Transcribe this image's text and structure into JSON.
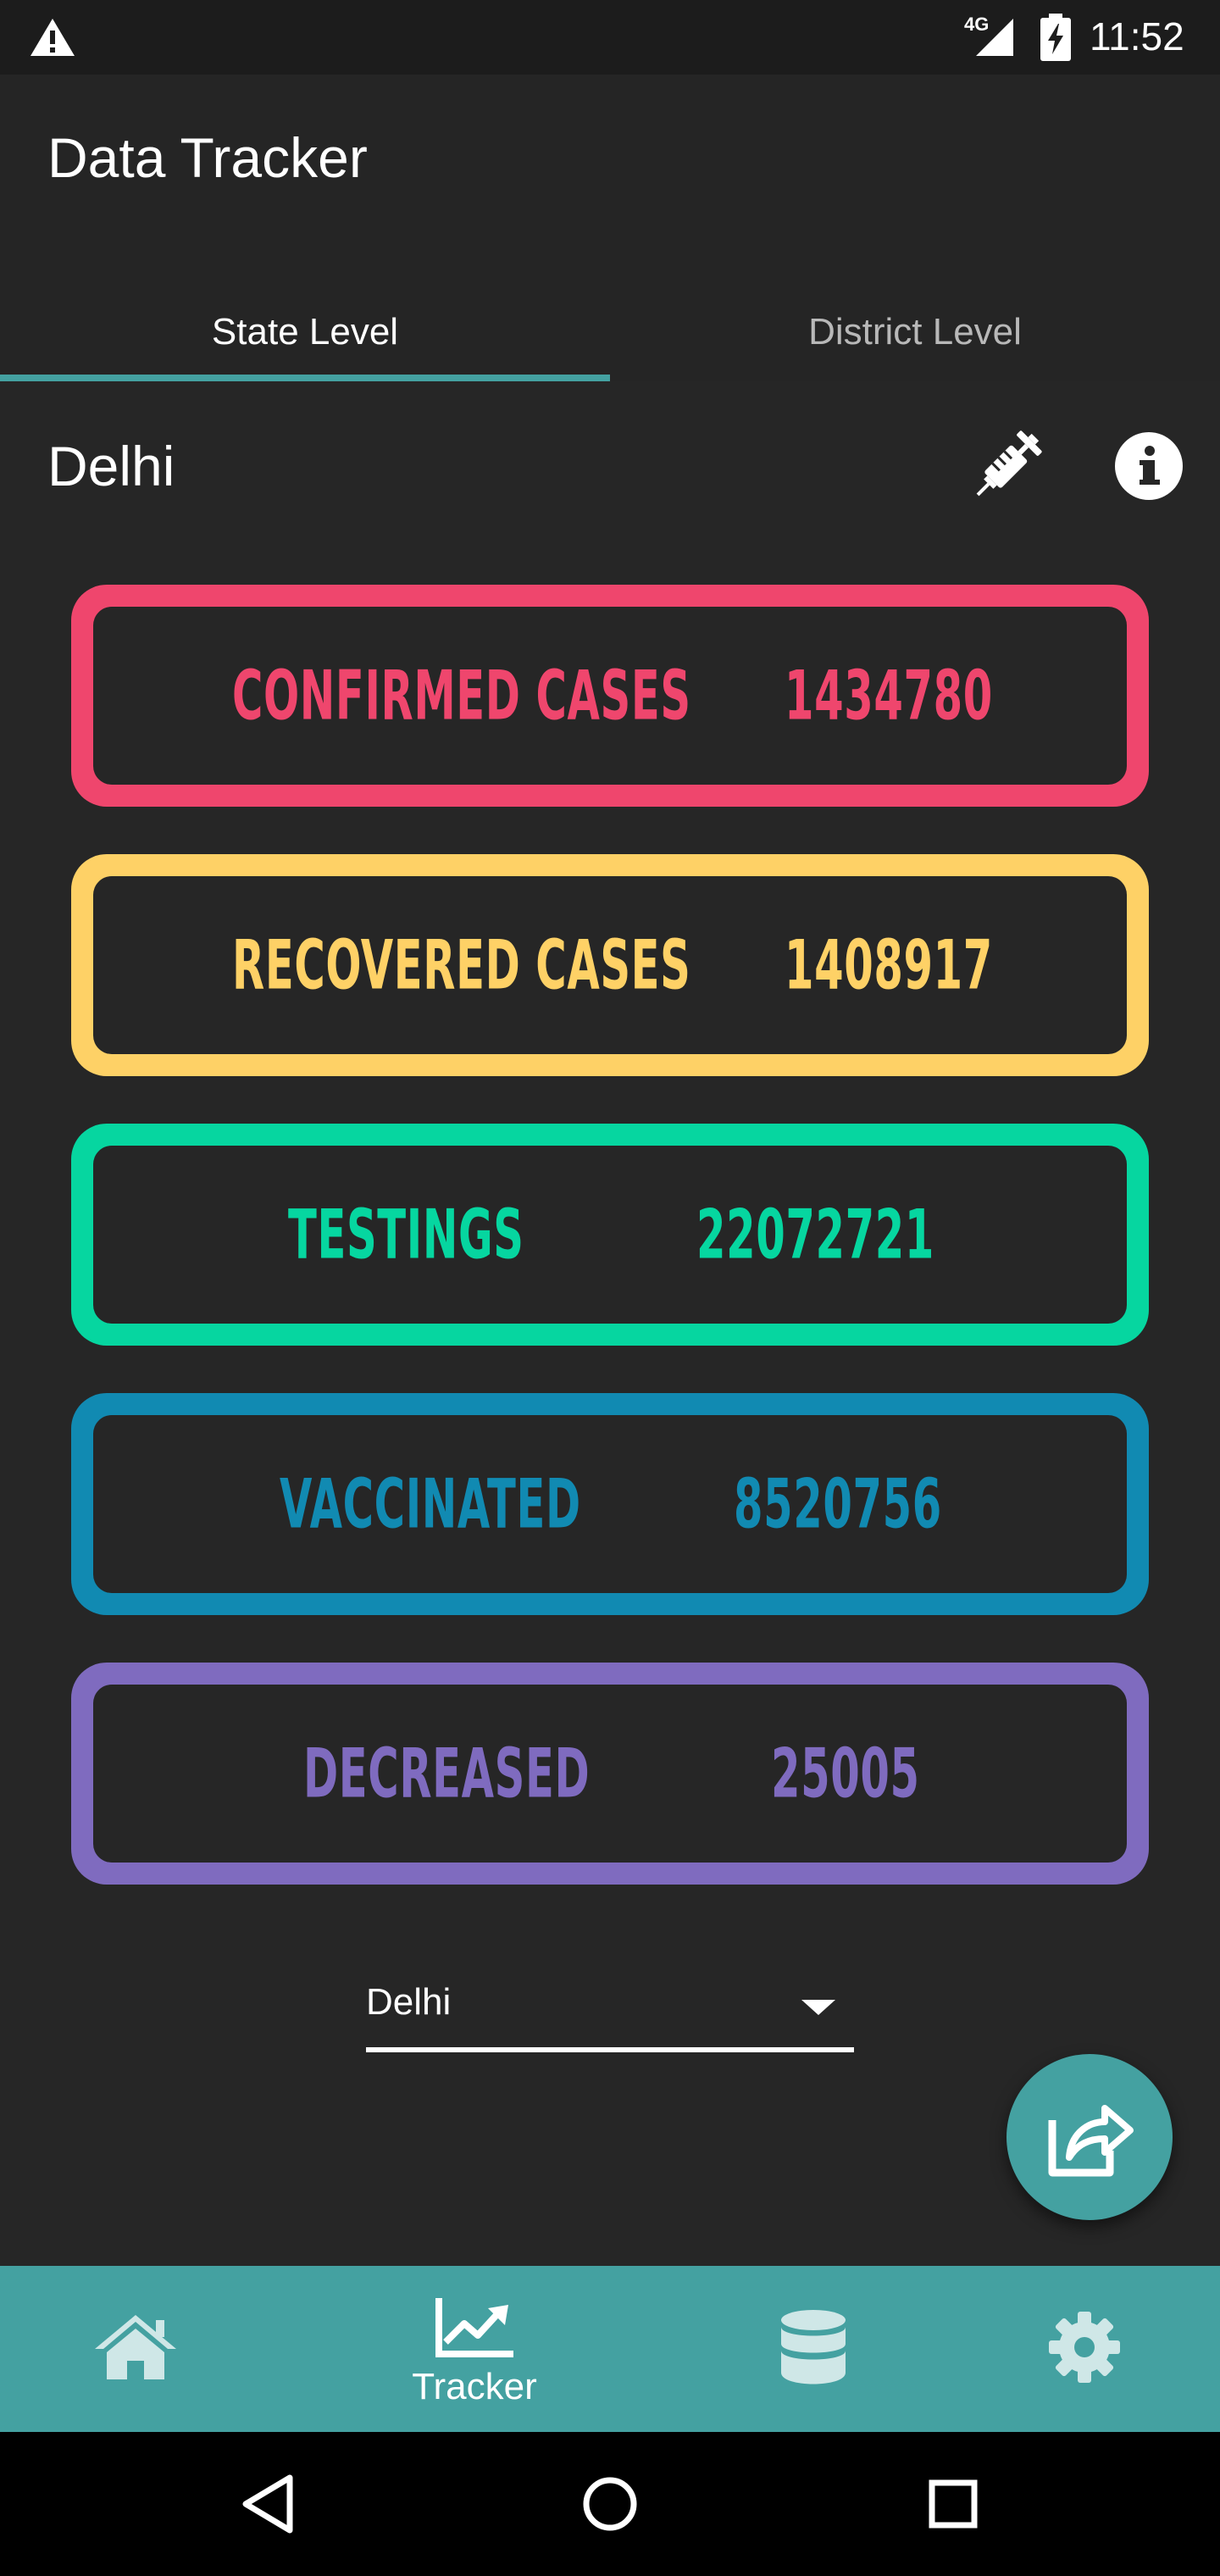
{
  "status_bar": {
    "network": "4G",
    "time": "11:52",
    "icons": [
      "warning-icon",
      "signal-icon",
      "battery-charging-icon"
    ]
  },
  "app": {
    "title": "Data Tracker"
  },
  "tabs": [
    {
      "label": "State Level",
      "selected": true
    },
    {
      "label": "District Level",
      "selected": false
    }
  ],
  "region": {
    "title": "Delhi",
    "actions": [
      "syringe-icon",
      "info-icon"
    ]
  },
  "stats": [
    {
      "label": "CONFIRMED CASES",
      "value": "1434780",
      "color": "#ef466d"
    },
    {
      "label": "RECOVERED CASES",
      "value": "1408917",
      "color": "#fed166"
    },
    {
      "label": "TESTINGS",
      "value": "22072721",
      "color": "#06d6a0"
    },
    {
      "label": "VACCINATED",
      "value": "8520756",
      "color": "#118ab2"
    },
    {
      "label": "DECREASED",
      "value": "25005",
      "color": "#7f6bbf"
    }
  ],
  "dropdown": {
    "selected": "Delhi"
  },
  "fab": {
    "icon": "share-icon"
  },
  "bottom_nav": [
    {
      "icon": "home-icon",
      "label": "",
      "selected": false
    },
    {
      "icon": "chart-line-icon",
      "label": "Tracker",
      "selected": true
    },
    {
      "icon": "database-icon",
      "label": "",
      "selected": false
    },
    {
      "icon": "gear-icon",
      "label": "",
      "selected": false
    }
  ],
  "colors": {
    "background": "#262626",
    "accent": "#44a1a1"
  }
}
